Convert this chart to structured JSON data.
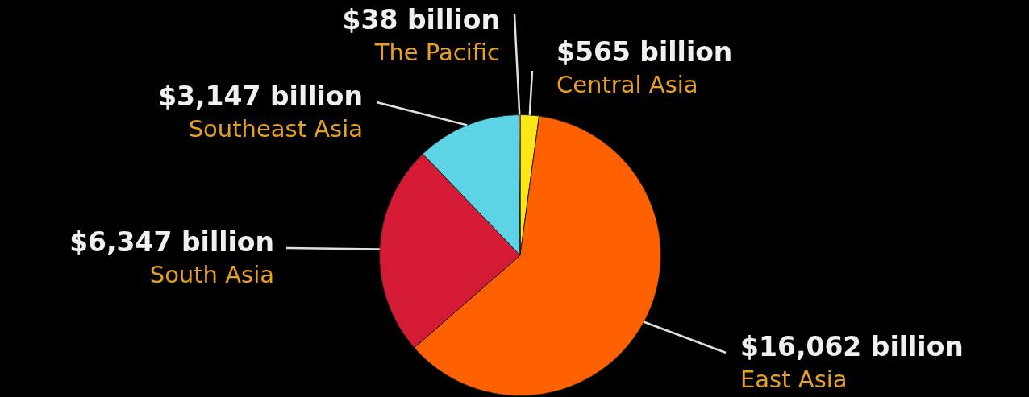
{
  "chart_data": {
    "type": "pie",
    "categories": [
      "Central Asia",
      "East Asia",
      "South Asia",
      "Southeast Asia",
      "The Pacific"
    ],
    "values": [
      565,
      16062,
      6347,
      3147,
      38
    ],
    "value_labels": [
      "$565 billion",
      "$16,062 billion",
      "$6,347 billion",
      "$3,147 billion",
      "$38 billion"
    ],
    "colors": [
      "#ffe617",
      "#ff6000",
      "#d41a35",
      "#5dd3e6",
      "#d0d0d0"
    ],
    "legend": false
  }
}
